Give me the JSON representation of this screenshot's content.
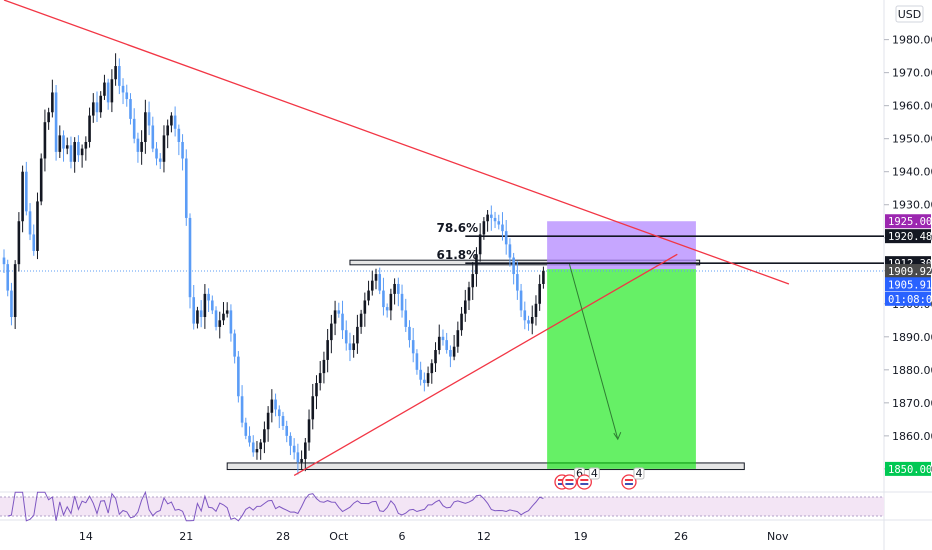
{
  "currency_button": "USD",
  "chart_data": {
    "type": "candlestick",
    "instrument_currency": "USD",
    "ylim": [
      1843,
      1992
    ],
    "y_ticks": [
      1850,
      1860,
      1870,
      1880,
      1890,
      1900,
      1910,
      1920,
      1930,
      1940,
      1950,
      1960,
      1970,
      1980
    ],
    "y_tick_labels": [
      "1850.000",
      "1860.000",
      "1870.000",
      "1880.000",
      "1890.000",
      "1900.000",
      "1910.000",
      "1920.000",
      "1930.000",
      "1940.000",
      "1950.000",
      "1960.000",
      "1970.000",
      "1980.000"
    ],
    "x_ticks": [
      {
        "label": "14",
        "bar": 22
      },
      {
        "label": "21",
        "bar": 49
      },
      {
        "label": "28",
        "bar": 75
      },
      {
        "label": "Oct",
        "bar": 90
      },
      {
        "label": "6",
        "bar": 107
      },
      {
        "label": "12",
        "bar": 129
      },
      {
        "label": "19",
        "bar": 155
      },
      {
        "label": "26",
        "bar": 182
      },
      {
        "label": "Nov",
        "bar": 208
      }
    ],
    "total_bars": 236,
    "bull_color": "#131722",
    "bear_color": "#5b9cf6",
    "close_series": [
      1912,
      1904,
      1896,
      1912,
      1925,
      1940,
      1928,
      1921,
      1916,
      1931,
      1944,
      1955,
      1958,
      1964,
      1946,
      1951,
      1947,
      1948,
      1943,
      1949,
      1945,
      1947,
      1949,
      1957,
      1961,
      1958,
      1963,
      1967,
      1961,
      1968,
      1972,
      1966,
      1964,
      1962,
      1956,
      1950,
      1946,
      1949,
      1958,
      1954,
      1947,
      1944,
      1943,
      1951,
      1954,
      1957,
      1953,
      1949,
      1944,
      1926,
      1902,
      1894,
      1898,
      1896,
      1903,
      1901,
      1898,
      1893,
      1895,
      1897,
      1898,
      1891,
      1884,
      1872,
      1864,
      1860,
      1858,
      1855,
      1856,
      1858,
      1862,
      1867,
      1871,
      1868,
      1866,
      1863,
      1860,
      1857,
      1855,
      1852,
      1853,
      1858,
      1865,
      1872,
      1876,
      1879,
      1883,
      1889,
      1894,
      1898,
      1897,
      1892,
      1888,
      1886,
      1888,
      1893,
      1897,
      1901,
      1904,
      1907,
      1909,
      1904,
      1899,
      1898,
      1903,
      1906,
      1903,
      1898,
      1893,
      1889,
      1885,
      1880,
      1877,
      1876,
      1879,
      1882,
      1886,
      1890,
      1889,
      1886,
      1884,
      1887,
      1892,
      1897,
      1901,
      1905,
      1909,
      1915,
      1921,
      1925,
      1927,
      1926,
      1925,
      1924,
      1922,
      1918,
      1914,
      1909,
      1904,
      1898,
      1895,
      1894,
      1896,
      1900,
      1906,
      1910
    ],
    "last_price": "1909.920",
    "levels": [
      {
        "label": "1925.000",
        "price": 1925,
        "tag_color": "#9c27b0"
      },
      {
        "label": "1920.483",
        "price": 1920.483,
        "tag_color": "#131722",
        "line": true
      },
      {
        "label": "1912.309",
        "price": 1912.309,
        "tag_color": "#131722",
        "line": true
      },
      {
        "label": "1909.920",
        "price": 1909.92,
        "tag_color": "#4a4a4a"
      },
      {
        "label": "1905.911",
        "price": 1905.911,
        "tag_color": "#2962ff"
      },
      {
        "label": "01:08:09",
        "price": 1901.5,
        "tag_color": "#2962ff"
      },
      {
        "label": "1850.000",
        "price": 1850,
        "tag_color": "#00c853"
      }
    ],
    "fib_labels": [
      {
        "text": "78.6%",
        "price": 1920.483
      },
      {
        "text": "61.8%",
        "price": 1912.309
      }
    ],
    "position": {
      "type": "short",
      "entry": 1910.5,
      "stop": 1925,
      "target": 1850,
      "start_bar": 146,
      "end_bar": 186,
      "stop_color": "#b388ff",
      "target_color": "#00e600"
    },
    "zones": [
      {
        "name": "resistance-zone",
        "top": 1913.2,
        "bottom": 1911.8,
        "start_bar": 93,
        "end_bar": 187
      },
      {
        "name": "support-zone",
        "top": 1851.8,
        "bottom": 1849.8,
        "start_bar": 60,
        "end_bar": 199
      }
    ],
    "trendlines": [
      {
        "name": "descending-trendline",
        "from": {
          "bar": 0,
          "price": 1992
        },
        "to": {
          "bar": 211,
          "price": 1906
        }
      },
      {
        "name": "ascending-trendline",
        "from": {
          "bar": 78,
          "price": 1848
        },
        "to": {
          "bar": 181,
          "price": 1915
        }
      }
    ],
    "projection_arrow": {
      "from": {
        "bar": 152,
        "price": 1912
      },
      "to": {
        "bar": 165,
        "price": 1859
      }
    },
    "events": [
      {
        "bar": 150,
        "count": ""
      },
      {
        "bar": 152,
        "count": "6"
      },
      {
        "bar": 156,
        "count": "4"
      },
      {
        "bar": 168,
        "count": "4"
      }
    ],
    "rsi": {
      "range": [
        0,
        100
      ],
      "upper": 70,
      "lower": 30
    }
  }
}
